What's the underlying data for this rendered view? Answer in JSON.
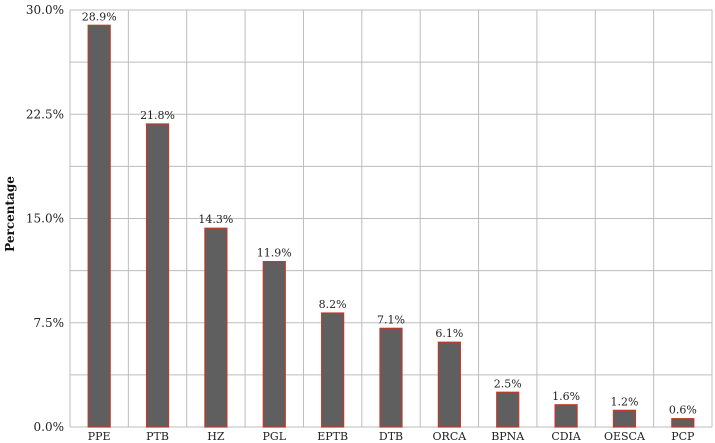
{
  "chart_data": {
    "type": "bar",
    "title": "",
    "xlabel": "",
    "ylabel": "Percentage",
    "categories": [
      "PPE",
      "PTB",
      "HZ",
      "PGL",
      "EPTB",
      "DTB",
      "ORCA",
      "BPNA",
      "CDIA",
      "OESCA",
      "PCP"
    ],
    "values": [
      28.9,
      21.8,
      14.3,
      11.9,
      8.2,
      7.1,
      6.1,
      2.5,
      1.6,
      1.2,
      0.6
    ],
    "data_labels": [
      "28.9%",
      "21.8%",
      "14.3%",
      "11.9%",
      "8.2%",
      "7.1%",
      "6.1%",
      "2.5%",
      "1.6%",
      "1.2%",
      "0.6%"
    ],
    "ylim": [
      0,
      30
    ],
    "y_ticks": [
      0,
      7.5,
      15,
      22.5,
      30
    ],
    "y_tick_labels": [
      "0.0%",
      "7.5%",
      "15.0%",
      "22.5%",
      "30.0%"
    ],
    "grid": true,
    "legend": "none",
    "bar_fill": "#5f5f5f",
    "bar_edge": "#c0392b",
    "grid_color": "#bdbdbd"
  }
}
